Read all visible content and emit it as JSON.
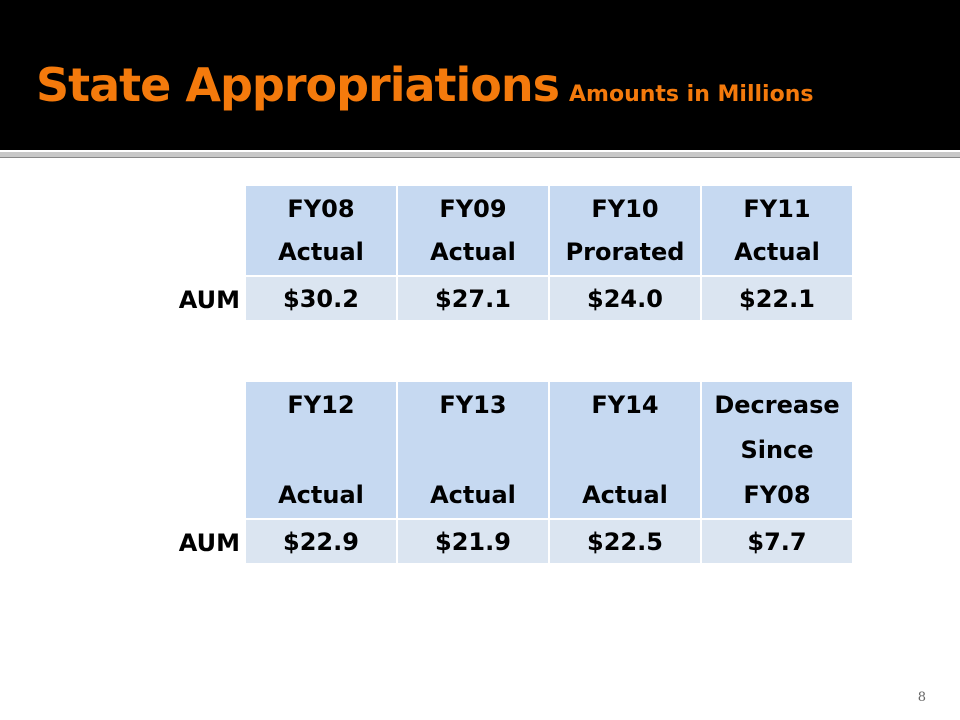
{
  "header": {
    "title": "State Appropriations",
    "subtitle": "Amounts in Millions"
  },
  "tables": [
    {
      "headers": [
        [
          "FY08",
          "Actual"
        ],
        [
          "FY09",
          "Actual"
        ],
        [
          "FY10",
          "Prorated"
        ],
        [
          "FY11",
          "Actual"
        ]
      ],
      "row_label": "AUM",
      "values": [
        "$30.2",
        "$27.1",
        "$24.0",
        "$22.1"
      ]
    },
    {
      "headers": [
        [
          "FY12",
          "Actual"
        ],
        [
          "FY13",
          "Actual"
        ],
        [
          "FY14",
          "Actual"
        ],
        [
          "Decrease",
          "Since",
          "FY08"
        ]
      ],
      "row_label": "AUM",
      "values": [
        "$22.9",
        "$21.9",
        "$22.5",
        "$7.7"
      ]
    }
  ],
  "page_number": "8"
}
